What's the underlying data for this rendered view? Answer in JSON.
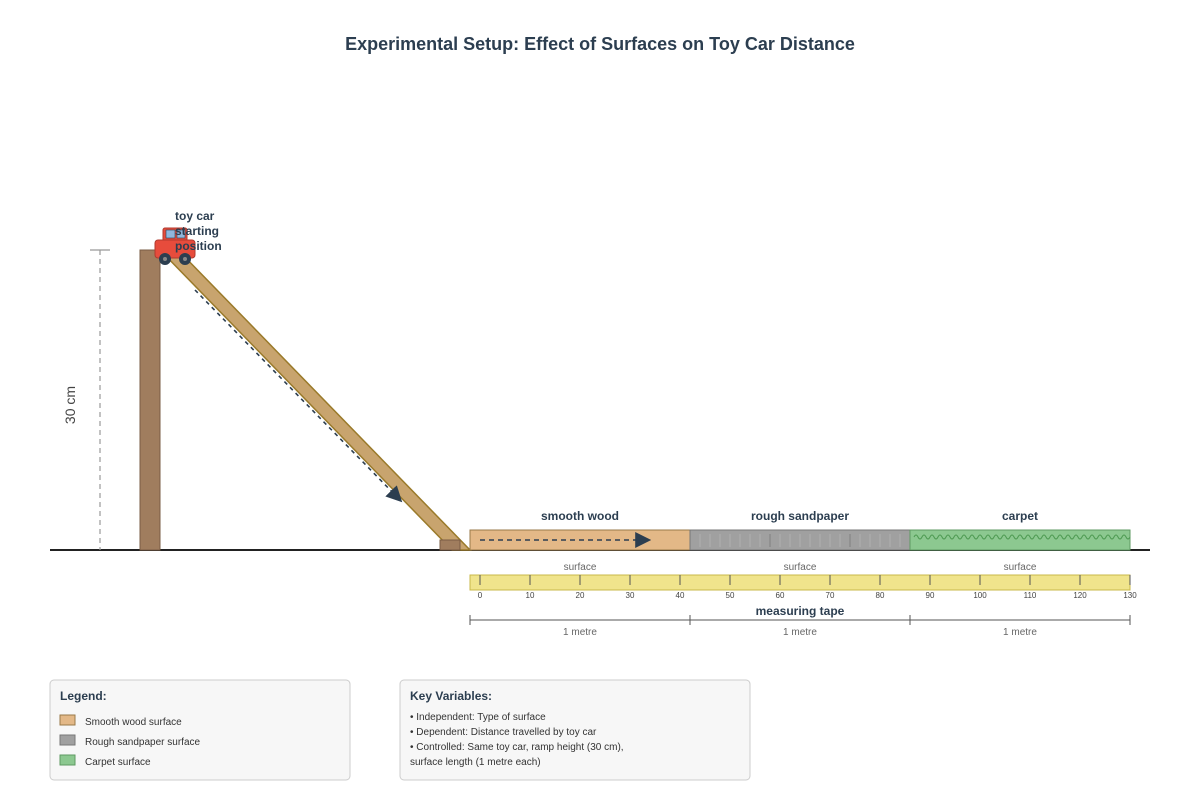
{
  "title": "Experimental Setup: Effect of Surfaces on Toy Car Distance",
  "car_label_lines": [
    "toy car",
    "starting",
    "position"
  ],
  "height_label": "30 cm",
  "colors": {
    "wood": "#e3b887",
    "sandpaper": "#a0a0a0",
    "carpet": "#8cc890",
    "ramp": "#c8a46e",
    "post": "#a07d5e",
    "tape": "#f0e48c",
    "car_body": "#e74c3c",
    "text": "#2c3e50"
  },
  "surfaces": [
    {
      "name": "smooth wood",
      "caption": "surface",
      "length": "1 metre"
    },
    {
      "name": "rough sandpaper",
      "caption": "surface",
      "length": "1 metre"
    },
    {
      "name": "carpet",
      "caption": "surface",
      "length": "1 metre"
    }
  ],
  "tape": {
    "label": "measuring tape",
    "ticks": [
      "0",
      "10",
      "20",
      "30",
      "40",
      "50",
      "60",
      "70",
      "80",
      "90",
      "100",
      "110",
      "120",
      "130"
    ]
  },
  "legend": {
    "title": "Legend:",
    "items": [
      {
        "label": "Smooth wood surface",
        "color": "#e3b887"
      },
      {
        "label": "Rough sandpaper surface",
        "color": "#a0a0a0"
      },
      {
        "label": "Carpet surface",
        "color": "#8cc890"
      }
    ]
  },
  "variables": {
    "title": "Key Variables:",
    "lines": [
      "• Independent: Type of surface",
      "• Dependent: Distance travelled by toy car",
      "• Controlled: Same toy car, ramp height (30 cm),",
      "surface length (1 metre each)"
    ]
  }
}
